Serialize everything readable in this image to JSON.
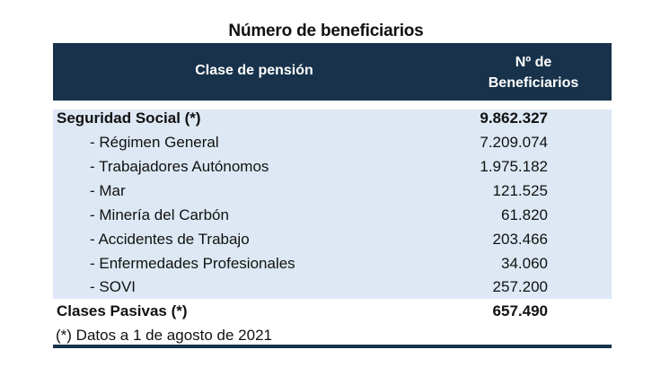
{
  "title": "Número de beneficiarios",
  "header": {
    "col1": "Clase de pensión",
    "col2_line1": "Nº de",
    "col2_line2": "Beneficiarios"
  },
  "rows": [
    {
      "label": "Seguridad Social (*)",
      "value": "9.862.327",
      "bold": true
    },
    {
      "label": "- Régimen General",
      "value": "7.209.074"
    },
    {
      "label": "- Trabajadores Autónomos",
      "value": "1.975.182"
    },
    {
      "label": "- Mar",
      "value": "121.525"
    },
    {
      "label": "- Minería del Carbón",
      "value": "61.820"
    },
    {
      "label": "- Accidentes de Trabajo",
      "value": "203.466"
    },
    {
      "label": "- Enfermedades Profesionales",
      "value": "34.060"
    },
    {
      "label": "- SOVI",
      "value": "257.200"
    },
    {
      "label": "Clases Pasivas (*)",
      "value": "657.490",
      "bold": true
    }
  ],
  "footnote": "(*) Datos a 1 de agosto de 2021",
  "colors": {
    "header": "#17324a",
    "band": "#dde8f4"
  }
}
